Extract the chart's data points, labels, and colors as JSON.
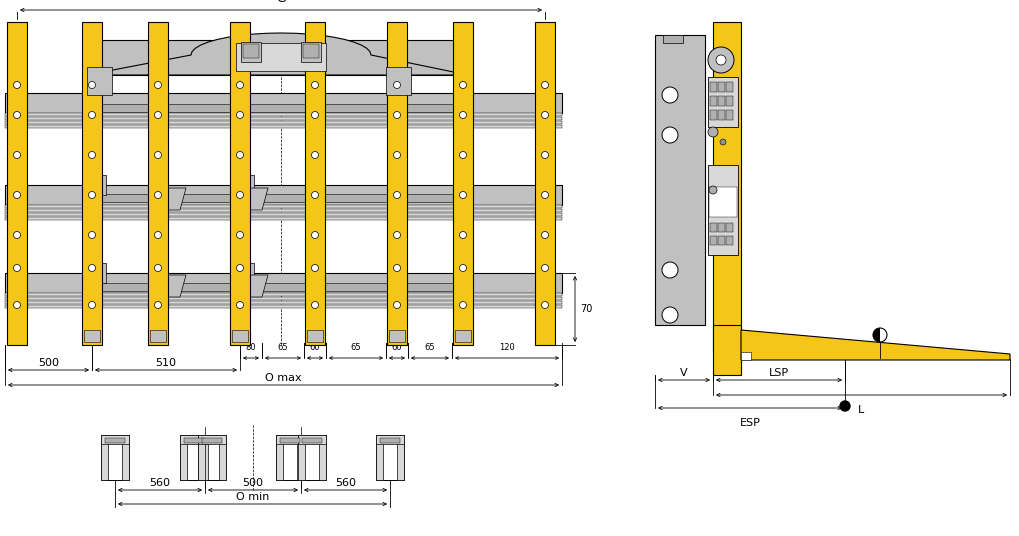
{
  "yellow_color": "#F5C518",
  "gray_color": "#C0C0C0",
  "gray_dark": "#909090",
  "gray_light": "#D8D8D8",
  "gray_mid": "#B0B0B0",
  "black": "#000000",
  "white": "#FFFFFF",
  "line_color": "#000000",
  "bg_color": "#FFFFFF",
  "dim_labels": {
    "G": "G",
    "500": "500",
    "510": "510",
    "80": "80",
    "65a": "65",
    "60a": "60",
    "65b": "65",
    "60b": "60",
    "65c": "65",
    "120": "120",
    "70": "70",
    "O_max": "O max",
    "560a": "560",
    "500b": "500",
    "560b": "560",
    "O_min": "O min",
    "V": "V",
    "LSP": "LSP",
    "L": "L",
    "ESP": "ESP"
  }
}
